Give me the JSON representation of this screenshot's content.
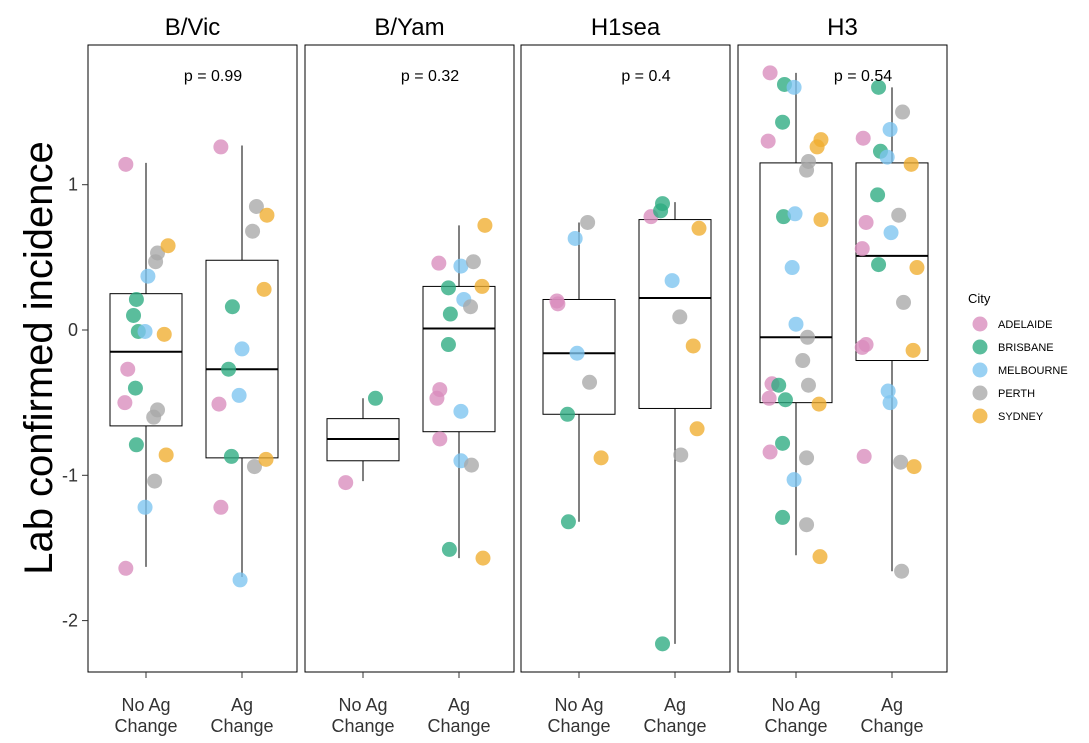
{
  "chart_data": {
    "type": "box_jitter",
    "ylabel": "Lab confirmed incidence",
    "ylim": [
      -2.35,
      1.95
    ],
    "yticks": [
      -2,
      -1,
      0,
      1
    ],
    "categories": [
      "No Ag\nChange",
      "Ag\nChange"
    ],
    "legend": {
      "title": "City",
      "position": "right",
      "entries": [
        {
          "name": "ADELAIDE",
          "color": "#D98CBC"
        },
        {
          "name": "BRISBANE",
          "color": "#2BAA80"
        },
        {
          "name": "MELBOURNE",
          "color": "#7CC4F0"
        },
        {
          "name": "PERTH",
          "color": "#A8A8A8"
        },
        {
          "name": "SYDNEY",
          "color": "#EFAD2E"
        }
      ]
    },
    "facets": [
      {
        "title": "B/Vic",
        "pvalue": "p = 0.99",
        "boxes": [
          {
            "min": -1.63,
            "q1": -0.66,
            "median": -0.15,
            "q3": 0.25,
            "max": 1.15
          },
          {
            "min": -1.7,
            "q1": -0.88,
            "median": -0.27,
            "q3": 0.48,
            "max": 1.27
          }
        ],
        "points": [
          {
            "g": 0,
            "dx": -0.21,
            "y": 1.14,
            "city": "ADELAIDE"
          },
          {
            "g": 0,
            "dx": -0.19,
            "y": -0.27,
            "city": "ADELAIDE"
          },
          {
            "g": 0,
            "dx": -0.22,
            "y": -0.5,
            "city": "ADELAIDE"
          },
          {
            "g": 0,
            "dx": -0.21,
            "y": -1.64,
            "city": "ADELAIDE"
          },
          {
            "g": 0,
            "dx": -0.1,
            "y": 0.21,
            "city": "BRISBANE"
          },
          {
            "g": 0,
            "dx": -0.13,
            "y": 0.1,
            "city": "BRISBANE"
          },
          {
            "g": 0,
            "dx": -0.08,
            "y": -0.01,
            "city": "BRISBANE"
          },
          {
            "g": 0,
            "dx": -0.11,
            "y": -0.4,
            "city": "BRISBANE"
          },
          {
            "g": 0,
            "dx": -0.1,
            "y": -0.79,
            "city": "BRISBANE"
          },
          {
            "g": 0,
            "dx": 0.02,
            "y": 0.37,
            "city": "MELBOURNE"
          },
          {
            "g": 0,
            "dx": -0.01,
            "y": -0.01,
            "city": "MELBOURNE"
          },
          {
            "g": 0,
            "dx": -0.01,
            "y": -1.22,
            "city": "MELBOURNE"
          },
          {
            "g": 0,
            "dx": 0.12,
            "y": 0.53,
            "city": "PERTH"
          },
          {
            "g": 0,
            "dx": 0.1,
            "y": 0.47,
            "city": "PERTH"
          },
          {
            "g": 0,
            "dx": 0.12,
            "y": -0.55,
            "city": "PERTH"
          },
          {
            "g": 0,
            "dx": 0.08,
            "y": -0.6,
            "city": "PERTH"
          },
          {
            "g": 0,
            "dx": 0.09,
            "y": -1.04,
            "city": "PERTH"
          },
          {
            "g": 0,
            "dx": 0.23,
            "y": 0.58,
            "city": "SYDNEY"
          },
          {
            "g": 0,
            "dx": 0.19,
            "y": -0.03,
            "city": "SYDNEY"
          },
          {
            "g": 0,
            "dx": 0.21,
            "y": -0.86,
            "city": "SYDNEY"
          },
          {
            "g": 1,
            "dx": -0.22,
            "y": 1.26,
            "city": "ADELAIDE"
          },
          {
            "g": 1,
            "dx": -0.24,
            "y": -0.51,
            "city": "ADELAIDE"
          },
          {
            "g": 1,
            "dx": -0.22,
            "y": -1.22,
            "city": "ADELAIDE"
          },
          {
            "g": 1,
            "dx": -0.1,
            "y": 0.16,
            "city": "BRISBANE"
          },
          {
            "g": 1,
            "dx": -0.14,
            "y": -0.27,
            "city": "BRISBANE"
          },
          {
            "g": 1,
            "dx": -0.11,
            "y": -0.87,
            "city": "BRISBANE"
          },
          {
            "g": 1,
            "dx": 0.0,
            "y": -0.13,
            "city": "MELBOURNE"
          },
          {
            "g": 1,
            "dx": -0.03,
            "y": -0.45,
            "city": "MELBOURNE"
          },
          {
            "g": 1,
            "dx": -0.02,
            "y": -1.72,
            "city": "MELBOURNE"
          },
          {
            "g": 1,
            "dx": 0.15,
            "y": 0.85,
            "city": "PERTH"
          },
          {
            "g": 1,
            "dx": 0.11,
            "y": 0.68,
            "city": "PERTH"
          },
          {
            "g": 1,
            "dx": 0.13,
            "y": -0.94,
            "city": "PERTH"
          },
          {
            "g": 1,
            "dx": 0.26,
            "y": 0.79,
            "city": "SYDNEY"
          },
          {
            "g": 1,
            "dx": 0.23,
            "y": 0.28,
            "city": "SYDNEY"
          },
          {
            "g": 1,
            "dx": 0.25,
            "y": -0.89,
            "city": "SYDNEY"
          }
        ]
      },
      {
        "title": "B/Yam",
        "pvalue": "p = 0.32",
        "boxes": [
          {
            "min": -1.04,
            "q1": -0.9,
            "median": -0.75,
            "q3": -0.61,
            "max": -0.47
          },
          {
            "min": -1.57,
            "q1": -0.7,
            "median": 0.01,
            "q3": 0.3,
            "max": 0.72
          }
        ],
        "points": [
          {
            "g": 0,
            "dx": -0.18,
            "y": -1.05,
            "city": "ADELAIDE"
          },
          {
            "g": 0,
            "dx": 0.13,
            "y": -0.47,
            "city": "BRISBANE"
          },
          {
            "g": 1,
            "dx": -0.21,
            "y": 0.46,
            "city": "ADELAIDE"
          },
          {
            "g": 1,
            "dx": -0.2,
            "y": -0.41,
            "city": "ADELAIDE"
          },
          {
            "g": 1,
            "dx": -0.23,
            "y": -0.47,
            "city": "ADELAIDE"
          },
          {
            "g": 1,
            "dx": -0.2,
            "y": -0.75,
            "city": "ADELAIDE"
          },
          {
            "g": 1,
            "dx": -0.11,
            "y": 0.29,
            "city": "BRISBANE"
          },
          {
            "g": 1,
            "dx": -0.09,
            "y": 0.11,
            "city": "BRISBANE"
          },
          {
            "g": 1,
            "dx": -0.11,
            "y": -0.1,
            "city": "BRISBANE"
          },
          {
            "g": 1,
            "dx": -0.1,
            "y": -1.51,
            "city": "BRISBANE"
          },
          {
            "g": 1,
            "dx": 0.02,
            "y": 0.44,
            "city": "MELBOURNE"
          },
          {
            "g": 1,
            "dx": 0.05,
            "y": 0.21,
            "city": "MELBOURNE"
          },
          {
            "g": 1,
            "dx": 0.02,
            "y": -0.56,
            "city": "MELBOURNE"
          },
          {
            "g": 1,
            "dx": 0.02,
            "y": -0.9,
            "city": "MELBOURNE"
          },
          {
            "g": 1,
            "dx": 0.15,
            "y": 0.47,
            "city": "PERTH"
          },
          {
            "g": 1,
            "dx": 0.12,
            "y": 0.16,
            "city": "PERTH"
          },
          {
            "g": 1,
            "dx": 0.13,
            "y": -0.93,
            "city": "PERTH"
          },
          {
            "g": 1,
            "dx": 0.27,
            "y": 0.72,
            "city": "SYDNEY"
          },
          {
            "g": 1,
            "dx": 0.24,
            "y": 0.3,
            "city": "SYDNEY"
          },
          {
            "g": 1,
            "dx": 0.25,
            "y": -1.57,
            "city": "SYDNEY"
          }
        ]
      },
      {
        "title": "H1sea",
        "pvalue": "p = 0.4",
        "boxes": [
          {
            "min": -1.32,
            "q1": -0.58,
            "median": -0.16,
            "q3": 0.21,
            "max": 0.74
          },
          {
            "min": -2.16,
            "q1": -0.54,
            "median": 0.22,
            "q3": 0.76,
            "max": 0.88
          }
        ],
        "points": [
          {
            "g": 0,
            "dx": -0.23,
            "y": 0.2,
            "city": "ADELAIDE"
          },
          {
            "g": 0,
            "dx": -0.22,
            "y": 0.18,
            "city": "ADELAIDE"
          },
          {
            "g": 0,
            "dx": -0.12,
            "y": -0.58,
            "city": "BRISBANE"
          },
          {
            "g": 0,
            "dx": -0.11,
            "y": -1.32,
            "city": "BRISBANE"
          },
          {
            "g": 0,
            "dx": -0.04,
            "y": 0.63,
            "city": "MELBOURNE"
          },
          {
            "g": 0,
            "dx": -0.02,
            "y": -0.16,
            "city": "MELBOURNE"
          },
          {
            "g": 0,
            "dx": 0.09,
            "y": 0.74,
            "city": "PERTH"
          },
          {
            "g": 0,
            "dx": 0.11,
            "y": -0.36,
            "city": "PERTH"
          },
          {
            "g": 0,
            "dx": 0.23,
            "y": -0.88,
            "city": "SYDNEY"
          },
          {
            "g": 1,
            "dx": -0.25,
            "y": 0.78,
            "city": "ADELAIDE"
          },
          {
            "g": 1,
            "dx": -0.13,
            "y": 0.87,
            "city": "BRISBANE"
          },
          {
            "g": 1,
            "dx": -0.15,
            "y": 0.82,
            "city": "BRISBANE"
          },
          {
            "g": 1,
            "dx": -0.13,
            "y": -2.16,
            "city": "BRISBANE"
          },
          {
            "g": 1,
            "dx": -0.03,
            "y": 0.34,
            "city": "MELBOURNE"
          },
          {
            "g": 1,
            "dx": 0.05,
            "y": 0.09,
            "city": "PERTH"
          },
          {
            "g": 1,
            "dx": 0.06,
            "y": -0.86,
            "city": "PERTH"
          },
          {
            "g": 1,
            "dx": 0.25,
            "y": 0.7,
            "city": "SYDNEY"
          },
          {
            "g": 1,
            "dx": 0.19,
            "y": -0.11,
            "city": "SYDNEY"
          },
          {
            "g": 1,
            "dx": 0.23,
            "y": -0.68,
            "city": "SYDNEY"
          }
        ]
      },
      {
        "title": "H3",
        "pvalue": "p = 0.54",
        "boxes": [
          {
            "min": -1.55,
            "q1": -0.5,
            "median": -0.05,
            "q3": 1.15,
            "max": 1.77
          },
          {
            "min": -1.66,
            "q1": -0.21,
            "median": 0.51,
            "q3": 1.15,
            "max": 1.67
          }
        ],
        "points": [
          {
            "g": 0,
            "dx": -0.27,
            "y": 1.77,
            "city": "ADELAIDE"
          },
          {
            "g": 0,
            "dx": -0.29,
            "y": 1.3,
            "city": "ADELAIDE"
          },
          {
            "g": 0,
            "dx": -0.25,
            "y": -0.37,
            "city": "ADELAIDE"
          },
          {
            "g": 0,
            "dx": -0.28,
            "y": -0.47,
            "city": "ADELAIDE"
          },
          {
            "g": 0,
            "dx": -0.27,
            "y": -0.84,
            "city": "ADELAIDE"
          },
          {
            "g": 0,
            "dx": -0.12,
            "y": 1.69,
            "city": "BRISBANE"
          },
          {
            "g": 0,
            "dx": -0.14,
            "y": 1.43,
            "city": "BRISBANE"
          },
          {
            "g": 0,
            "dx": -0.13,
            "y": 0.78,
            "city": "BRISBANE"
          },
          {
            "g": 0,
            "dx": -0.18,
            "y": -0.38,
            "city": "BRISBANE"
          },
          {
            "g": 0,
            "dx": -0.11,
            "y": -0.48,
            "city": "BRISBANE"
          },
          {
            "g": 0,
            "dx": -0.14,
            "y": -0.78,
            "city": "BRISBANE"
          },
          {
            "g": 0,
            "dx": -0.14,
            "y": -1.29,
            "city": "BRISBANE"
          },
          {
            "g": 0,
            "dx": -0.02,
            "y": 1.67,
            "city": "MELBOURNE"
          },
          {
            "g": 0,
            "dx": -0.01,
            "y": 0.8,
            "city": "MELBOURNE"
          },
          {
            "g": 0,
            "dx": -0.04,
            "y": 0.43,
            "city": "MELBOURNE"
          },
          {
            "g": 0,
            "dx": 0.0,
            "y": 0.04,
            "city": "MELBOURNE"
          },
          {
            "g": 0,
            "dx": -0.02,
            "y": -1.03,
            "city": "MELBOURNE"
          },
          {
            "g": 0,
            "dx": 0.13,
            "y": 1.16,
            "city": "PERTH"
          },
          {
            "g": 0,
            "dx": 0.11,
            "y": 1.1,
            "city": "PERTH"
          },
          {
            "g": 0,
            "dx": 0.12,
            "y": -0.05,
            "city": "PERTH"
          },
          {
            "g": 0,
            "dx": 0.07,
            "y": -0.21,
            "city": "PERTH"
          },
          {
            "g": 0,
            "dx": 0.13,
            "y": -0.38,
            "city": "PERTH"
          },
          {
            "g": 0,
            "dx": 0.11,
            "y": -0.88,
            "city": "PERTH"
          },
          {
            "g": 0,
            "dx": 0.11,
            "y": -1.34,
            "city": "PERTH"
          },
          {
            "g": 0,
            "dx": 0.26,
            "y": 1.31,
            "city": "SYDNEY"
          },
          {
            "g": 0,
            "dx": 0.22,
            "y": 1.26,
            "city": "SYDNEY"
          },
          {
            "g": 0,
            "dx": 0.26,
            "y": 0.76,
            "city": "SYDNEY"
          },
          {
            "g": 0,
            "dx": 0.24,
            "y": -0.51,
            "city": "SYDNEY"
          },
          {
            "g": 0,
            "dx": 0.25,
            "y": -1.56,
            "city": "SYDNEY"
          },
          {
            "g": 1,
            "dx": -0.3,
            "y": 1.32,
            "city": "ADELAIDE"
          },
          {
            "g": 1,
            "dx": -0.27,
            "y": 0.74,
            "city": "ADELAIDE"
          },
          {
            "g": 1,
            "dx": -0.31,
            "y": 0.56,
            "city": "ADELAIDE"
          },
          {
            "g": 1,
            "dx": -0.27,
            "y": -0.1,
            "city": "ADELAIDE"
          },
          {
            "g": 1,
            "dx": -0.31,
            "y": -0.12,
            "city": "ADELAIDE"
          },
          {
            "g": 1,
            "dx": -0.29,
            "y": -0.87,
            "city": "ADELAIDE"
          },
          {
            "g": 1,
            "dx": -0.14,
            "y": 1.67,
            "city": "BRISBANE"
          },
          {
            "g": 1,
            "dx": -0.12,
            "y": 1.23,
            "city": "BRISBANE"
          },
          {
            "g": 1,
            "dx": -0.15,
            "y": 0.93,
            "city": "BRISBANE"
          },
          {
            "g": 1,
            "dx": -0.14,
            "y": 0.45,
            "city": "BRISBANE"
          },
          {
            "g": 1,
            "dx": -0.02,
            "y": 1.38,
            "city": "MELBOURNE"
          },
          {
            "g": 1,
            "dx": -0.05,
            "y": 1.19,
            "city": "MELBOURNE"
          },
          {
            "g": 1,
            "dx": -0.01,
            "y": 0.67,
            "city": "MELBOURNE"
          },
          {
            "g": 1,
            "dx": -0.04,
            "y": -0.42,
            "city": "MELBOURNE"
          },
          {
            "g": 1,
            "dx": -0.02,
            "y": -0.5,
            "city": "MELBOURNE"
          },
          {
            "g": 1,
            "dx": 0.11,
            "y": 1.5,
            "city": "PERTH"
          },
          {
            "g": 1,
            "dx": 0.07,
            "y": 0.79,
            "city": "PERTH"
          },
          {
            "g": 1,
            "dx": 0.12,
            "y": 0.19,
            "city": "PERTH"
          },
          {
            "g": 1,
            "dx": 0.09,
            "y": -0.91,
            "city": "PERTH"
          },
          {
            "g": 1,
            "dx": 0.1,
            "y": -1.66,
            "city": "PERTH"
          },
          {
            "g": 1,
            "dx": 0.2,
            "y": 1.14,
            "city": "SYDNEY"
          },
          {
            "g": 1,
            "dx": 0.26,
            "y": 0.43,
            "city": "SYDNEY"
          },
          {
            "g": 1,
            "dx": 0.22,
            "y": -0.14,
            "city": "SYDNEY"
          },
          {
            "g": 1,
            "dx": 0.23,
            "y": -0.94,
            "city": "SYDNEY"
          }
        ]
      }
    ]
  }
}
